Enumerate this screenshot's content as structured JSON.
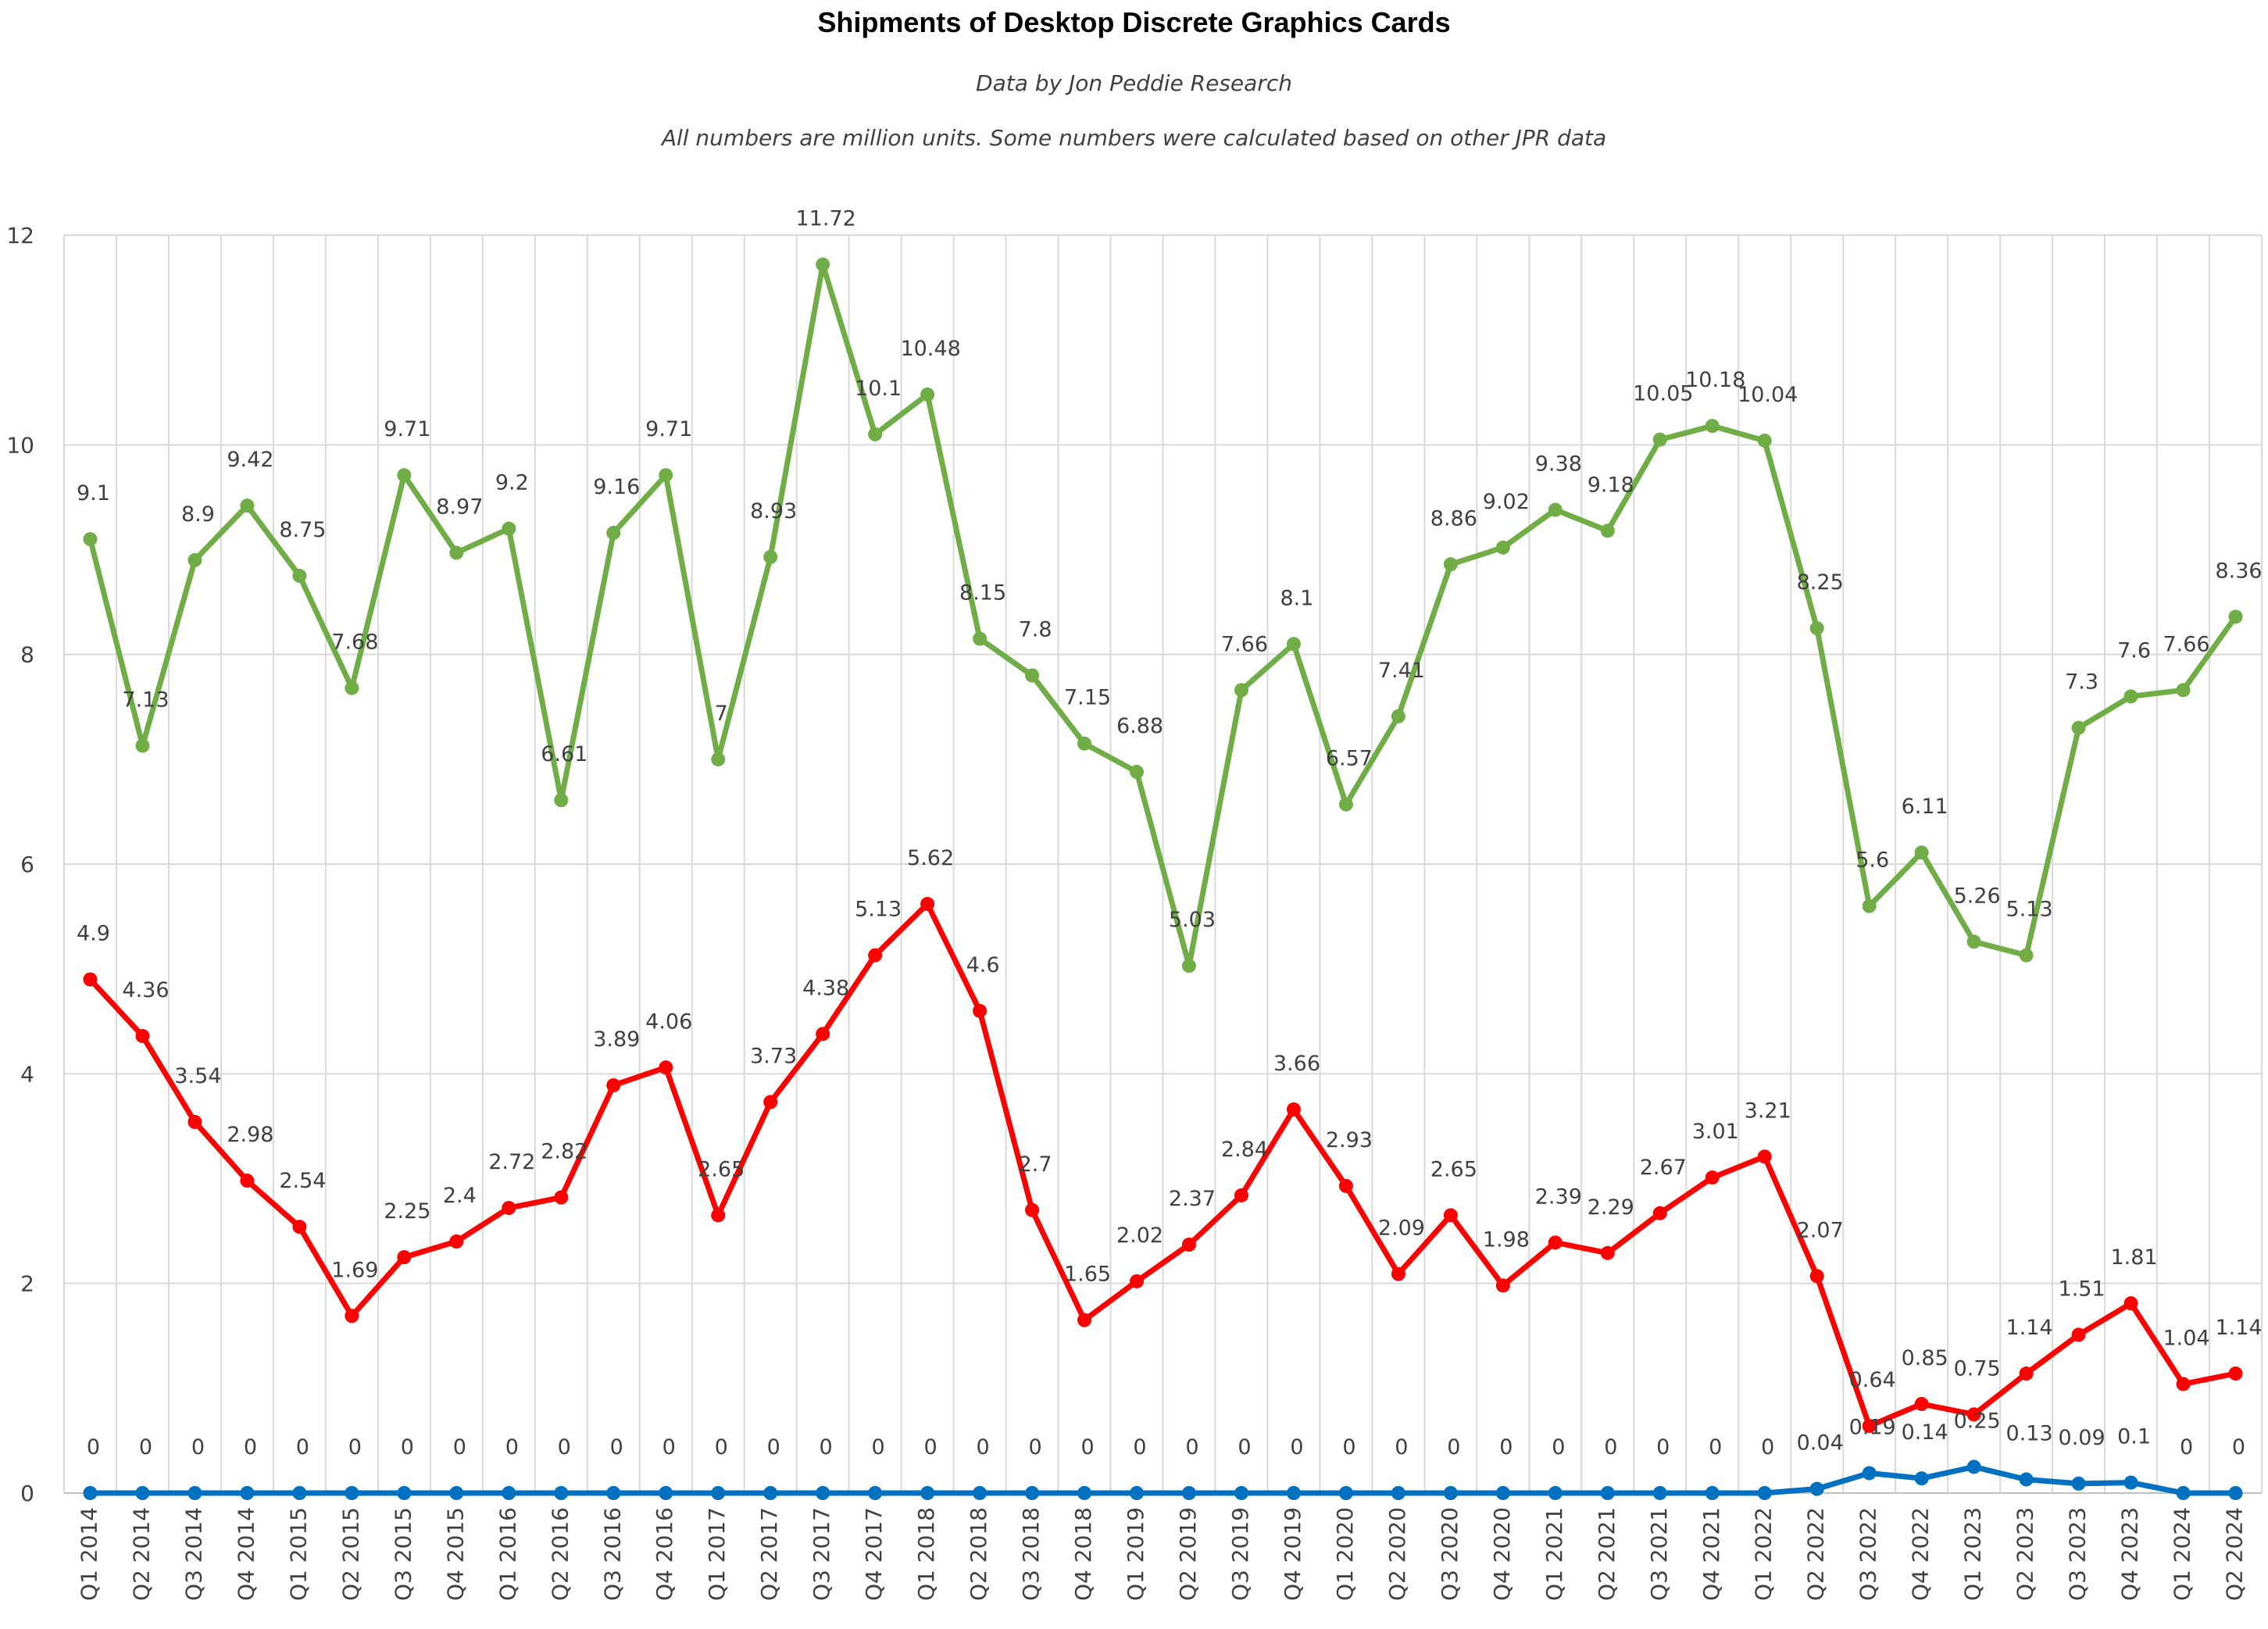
{
  "chart_data": {
    "type": "line",
    "title": "Shipments of Desktop Discrete Graphics Cards",
    "subtitle": "Data by Jon Peddie Research",
    "note": "All numbers are million units. Some numbers were calculated based on other JPR data",
    "xlabel": "",
    "ylabel": "",
    "ylim": [
      0,
      12
    ],
    "yticks": [
      "0",
      "2",
      "4",
      "6",
      "8",
      "10",
      "12"
    ],
    "grid": true,
    "legend": "none",
    "categories": [
      "Q1 2014",
      "Q2 2014",
      "Q3 2014",
      "Q4 2014",
      "Q1 2015",
      "Q2 2015",
      "Q3 2015",
      "Q4 2015",
      "Q1 2016",
      "Q2 2016",
      "Q3 2016",
      "Q4 2016",
      "Q1 2017",
      "Q2 2017",
      "Q3 2017",
      "Q4 2017",
      "Q1 2018",
      "Q2 2018",
      "Q3 2018",
      "Q4 2018",
      "Q1 2019",
      "Q2 2019",
      "Q3 2019",
      "Q4 2019",
      "Q1 2020",
      "Q2 2020",
      "Q3 2020",
      "Q4 2020",
      "Q1 2021",
      "Q2 2021",
      "Q3 2021",
      "Q4 2021",
      "Q1 2022",
      "Q2 2022",
      "Q3 2022",
      "Q4 2022",
      "Q1 2023",
      "Q2 2023",
      "Q3 2023",
      "Q4 2023",
      "Q1 2024",
      "Q2 2024"
    ],
    "series": [
      {
        "color": "#70AD47",
        "values": [
          9.1,
          7.13,
          8.9,
          9.42,
          8.75,
          7.68,
          9.71,
          8.97,
          9.2,
          6.61,
          9.16,
          9.71,
          7,
          8.93,
          11.72,
          10.1,
          10.48,
          8.15,
          7.8,
          7.15,
          6.88,
          5.03,
          7.66,
          8.1,
          6.57,
          7.41,
          8.86,
          9.02,
          9.38,
          9.18,
          10.05,
          10.18,
          10.04,
          8.25,
          5.6,
          6.11,
          5.26,
          5.13,
          7.3,
          7.6,
          7.66,
          8.36
        ],
        "labels": [
          "9.1",
          "7.13",
          "8.9",
          "9.42",
          "8.75",
          "7.68",
          "9.71",
          "8.97",
          "9.2",
          "6.61",
          "9.16",
          "9.71",
          "7",
          "8.93",
          "11.72",
          "10.1",
          "10.48",
          "8.15",
          "7.8",
          "7.15",
          "6.88",
          "5.03",
          "7.66",
          "8.1",
          "6.57",
          "7.41",
          "8.86",
          "9.02",
          "9.38",
          "9.18",
          "10.05",
          "10.18",
          "10.04",
          "8.25",
          "5.6",
          "6.11",
          "5.26",
          "5.13",
          "7.3",
          "7.6",
          "7.66",
          "8.36"
        ]
      },
      {
        "color": "#FF0000",
        "values": [
          4.9,
          4.36,
          3.54,
          2.98,
          2.54,
          1.69,
          2.25,
          2.4,
          2.72,
          2.82,
          3.89,
          4.06,
          2.65,
          3.73,
          4.38,
          5.13,
          5.62,
          4.6,
          2.7,
          1.65,
          2.02,
          2.37,
          2.84,
          3.66,
          2.93,
          2.09,
          2.65,
          1.98,
          2.39,
          2.29,
          2.67,
          3.01,
          3.21,
          2.07,
          0.64,
          0.85,
          0.75,
          1.14,
          1.51,
          1.81,
          1.04,
          1.14
        ],
        "labels": [
          "4.9",
          "4.36",
          "3.54",
          "2.98",
          "2.54",
          "1.69",
          "2.25",
          "2.4",
          "2.72",
          "2.82",
          "3.89",
          "4.06",
          "2.65",
          "3.73",
          "4.38",
          "5.13",
          "5.62",
          "4.6",
          "2.7",
          "1.65",
          "2.02",
          "2.37",
          "2.84",
          "3.66",
          "2.93",
          "2.09",
          "2.65",
          "1.98",
          "2.39",
          "2.29",
          "2.67",
          "3.01",
          "3.21",
          "2.07",
          "0.64",
          "0.85",
          "0.75",
          "1.14",
          "1.51",
          "1.81",
          "1.04",
          "1.14"
        ]
      },
      {
        "color": "#0070C0",
        "values": [
          0,
          0,
          0,
          0,
          0,
          0,
          0,
          0,
          0,
          0,
          0,
          0,
          0,
          0,
          0,
          0,
          0,
          0,
          0,
          0,
          0,
          0,
          0,
          0,
          0,
          0,
          0,
          0,
          0,
          0,
          0,
          0,
          0,
          0.04,
          0.19,
          0.14,
          0.25,
          0.13,
          0.09,
          0.1,
          0,
          0
        ],
        "labels": [
          "0",
          "0",
          "0",
          "0",
          "0",
          "0",
          "0",
          "0",
          "0",
          "0",
          "0",
          "0",
          "0",
          "0",
          "0",
          "0",
          "0",
          "0",
          "0",
          "0",
          "0",
          "0",
          "0",
          "0",
          "0",
          "0",
          "0",
          "0",
          "0",
          "0",
          "0",
          "0",
          "0",
          "0.04",
          "0.19",
          "0.14",
          "0.25",
          "0.13",
          "0.09",
          "0.1",
          "0",
          "0"
        ]
      }
    ]
  }
}
